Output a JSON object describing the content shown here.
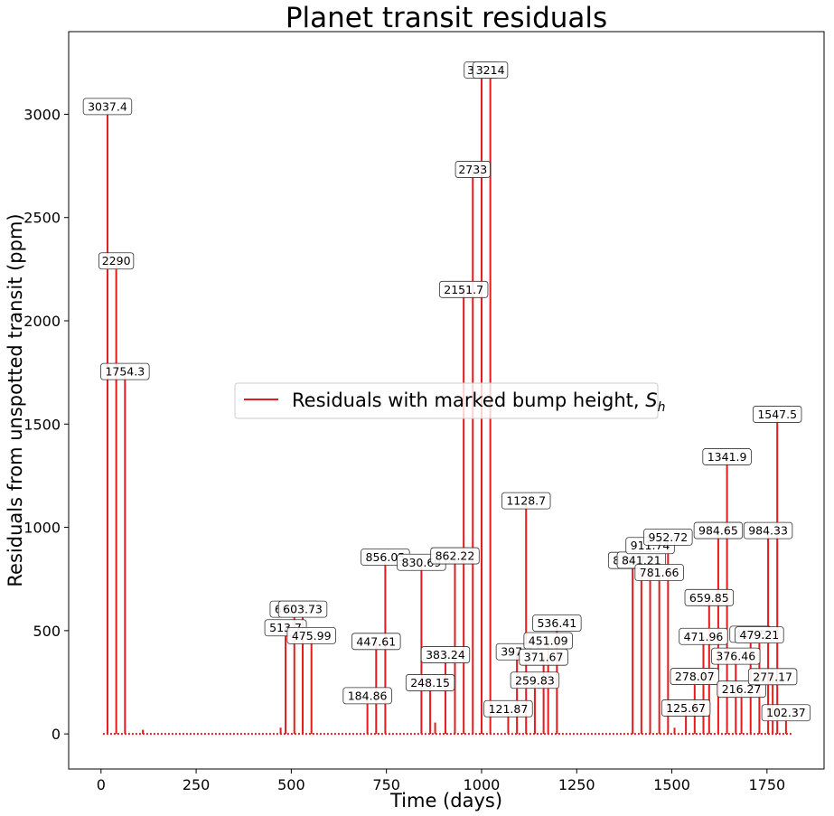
{
  "chart_data": {
    "type": "line",
    "title": "Planet transit residuals",
    "xlabel": "Time (days)",
    "ylabel": "Residuals from unspotted transit (ppm)",
    "xlim": [
      -85,
      1900
    ],
    "ylim": [
      -170,
      3400
    ],
    "xticks": [
      0,
      250,
      500,
      750,
      1000,
      1250,
      1500,
      1750
    ],
    "yticks": [
      0,
      500,
      1000,
      1500,
      2000,
      2500,
      3000
    ],
    "grid": false,
    "legend": {
      "position": "center",
      "entries": [
        "Residuals with marked bump height, $S_h$"
      ]
    },
    "series": [
      {
        "name": "Residuals with marked bump height, $S_h$",
        "color": "#e41a1c",
        "baseline_x_range": [
          5,
          1815
        ],
        "small_spikes": [
          {
            "x": 110,
            "y": 20
          },
          {
            "x": 472,
            "y": 30
          },
          {
            "x": 878,
            "y": 55
          },
          {
            "x": 1507,
            "y": 30
          }
        ],
        "spikes": [
          {
            "x": 17,
            "y": 3037.4,
            "label": "3037.4"
          },
          {
            "x": 40,
            "y": 2290,
            "label": "2290"
          },
          {
            "x": 63,
            "y": 1754.3,
            "label": "1754.3"
          },
          {
            "x": 485,
            "y": 513.7,
            "label": "513.7"
          },
          {
            "x": 508,
            "y": 603.73,
            "label": "603.73"
          },
          {
            "x": 530,
            "y": 603.73,
            "label": "603.73"
          },
          {
            "x": 553,
            "y": 475.99,
            "label": "475.99"
          },
          {
            "x": 700,
            "y": 184.86,
            "label": "184.86"
          },
          {
            "x": 723,
            "y": 447.61,
            "label": "447.61"
          },
          {
            "x": 747,
            "y": 856.05,
            "label": "856.05"
          },
          {
            "x": 842,
            "y": 830.69,
            "label": "830.69"
          },
          {
            "x": 865,
            "y": 248.15,
            "label": "248.15"
          },
          {
            "x": 905,
            "y": 383.24,
            "label": "383.24"
          },
          {
            "x": 930,
            "y": 862.22,
            "label": "862.22"
          },
          {
            "x": 953,
            "y": 2151.7,
            "label": "2151.7"
          },
          {
            "x": 977,
            "y": 2733,
            "label": "2733"
          },
          {
            "x": 1000,
            "y": 3214,
            "label": "3214"
          },
          {
            "x": 1023,
            "y": 3214,
            "label": "3214"
          },
          {
            "x": 1070,
            "y": 121.87,
            "label": "121.87"
          },
          {
            "x": 1093,
            "y": 397.7,
            "label": "397.7"
          },
          {
            "x": 1117,
            "y": 1128.7,
            "label": "1128.7"
          },
          {
            "x": 1140,
            "y": 259.83,
            "label": "259.83"
          },
          {
            "x": 1163,
            "y": 371.67,
            "label": "371.67"
          },
          {
            "x": 1175,
            "y": 451.09,
            "label": "451.09"
          },
          {
            "x": 1198,
            "y": 536.41,
            "label": "536.41"
          },
          {
            "x": 1397,
            "y": 839.77,
            "label": "839.77"
          },
          {
            "x": 1420,
            "y": 841.21,
            "label": "841.21"
          },
          {
            "x": 1443,
            "y": 911.74,
            "label": "911.74"
          },
          {
            "x": 1467,
            "y": 781.66,
            "label": "781.66"
          },
          {
            "x": 1490,
            "y": 952.72,
            "label": "952.72"
          },
          {
            "x": 1537,
            "y": 125.67,
            "label": "125.67"
          },
          {
            "x": 1560,
            "y": 278.07,
            "label": "278.07"
          },
          {
            "x": 1583,
            "y": 471.96,
            "label": "471.96"
          },
          {
            "x": 1598,
            "y": 659.85,
            "label": "659.85"
          },
          {
            "x": 1622,
            "y": 984.65,
            "label": "984.65"
          },
          {
            "x": 1645,
            "y": 1341.9,
            "label": "1341.9"
          },
          {
            "x": 1668,
            "y": 376.46,
            "label": "376.46"
          },
          {
            "x": 1683,
            "y": 216.27,
            "label": "216.27"
          },
          {
            "x": 1707,
            "y": 482.5,
            "label": "482.5"
          },
          {
            "x": 1730,
            "y": 479.21,
            "label": "479.21"
          },
          {
            "x": 1753,
            "y": 984.33,
            "label": "984.33"
          },
          {
            "x": 1765,
            "y": 277.17,
            "label": "277.17"
          },
          {
            "x": 1777,
            "y": 1547.5,
            "label": "1547.5"
          },
          {
            "x": 1800,
            "y": 102.37,
            "label": "102.37"
          }
        ]
      }
    ]
  }
}
